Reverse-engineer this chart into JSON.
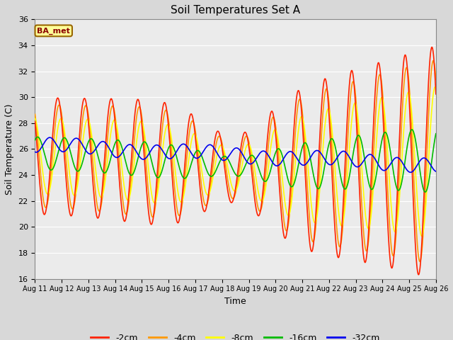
{
  "title": "Soil Temperatures Set A",
  "xlabel": "Time",
  "ylabel": "Soil Temperature (C)",
  "ylim": [
    16,
    36
  ],
  "yticks": [
    16,
    18,
    20,
    22,
    24,
    26,
    28,
    30,
    32,
    34,
    36
  ],
  "legend_label": "BA_met",
  "series_labels": [
    "-2cm",
    "-4cm",
    "-8cm",
    "-16cm",
    "-32cm"
  ],
  "series_colors": [
    "#ff2200",
    "#ff9900",
    "#ffff00",
    "#00bb00",
    "#0000ee"
  ],
  "background_color": "#d8d8d8",
  "plot_bg_color": "#ebebeb",
  "start_day": 11,
  "end_day": 26,
  "figsize": [
    6.4,
    4.8
  ],
  "dpi": 100
}
